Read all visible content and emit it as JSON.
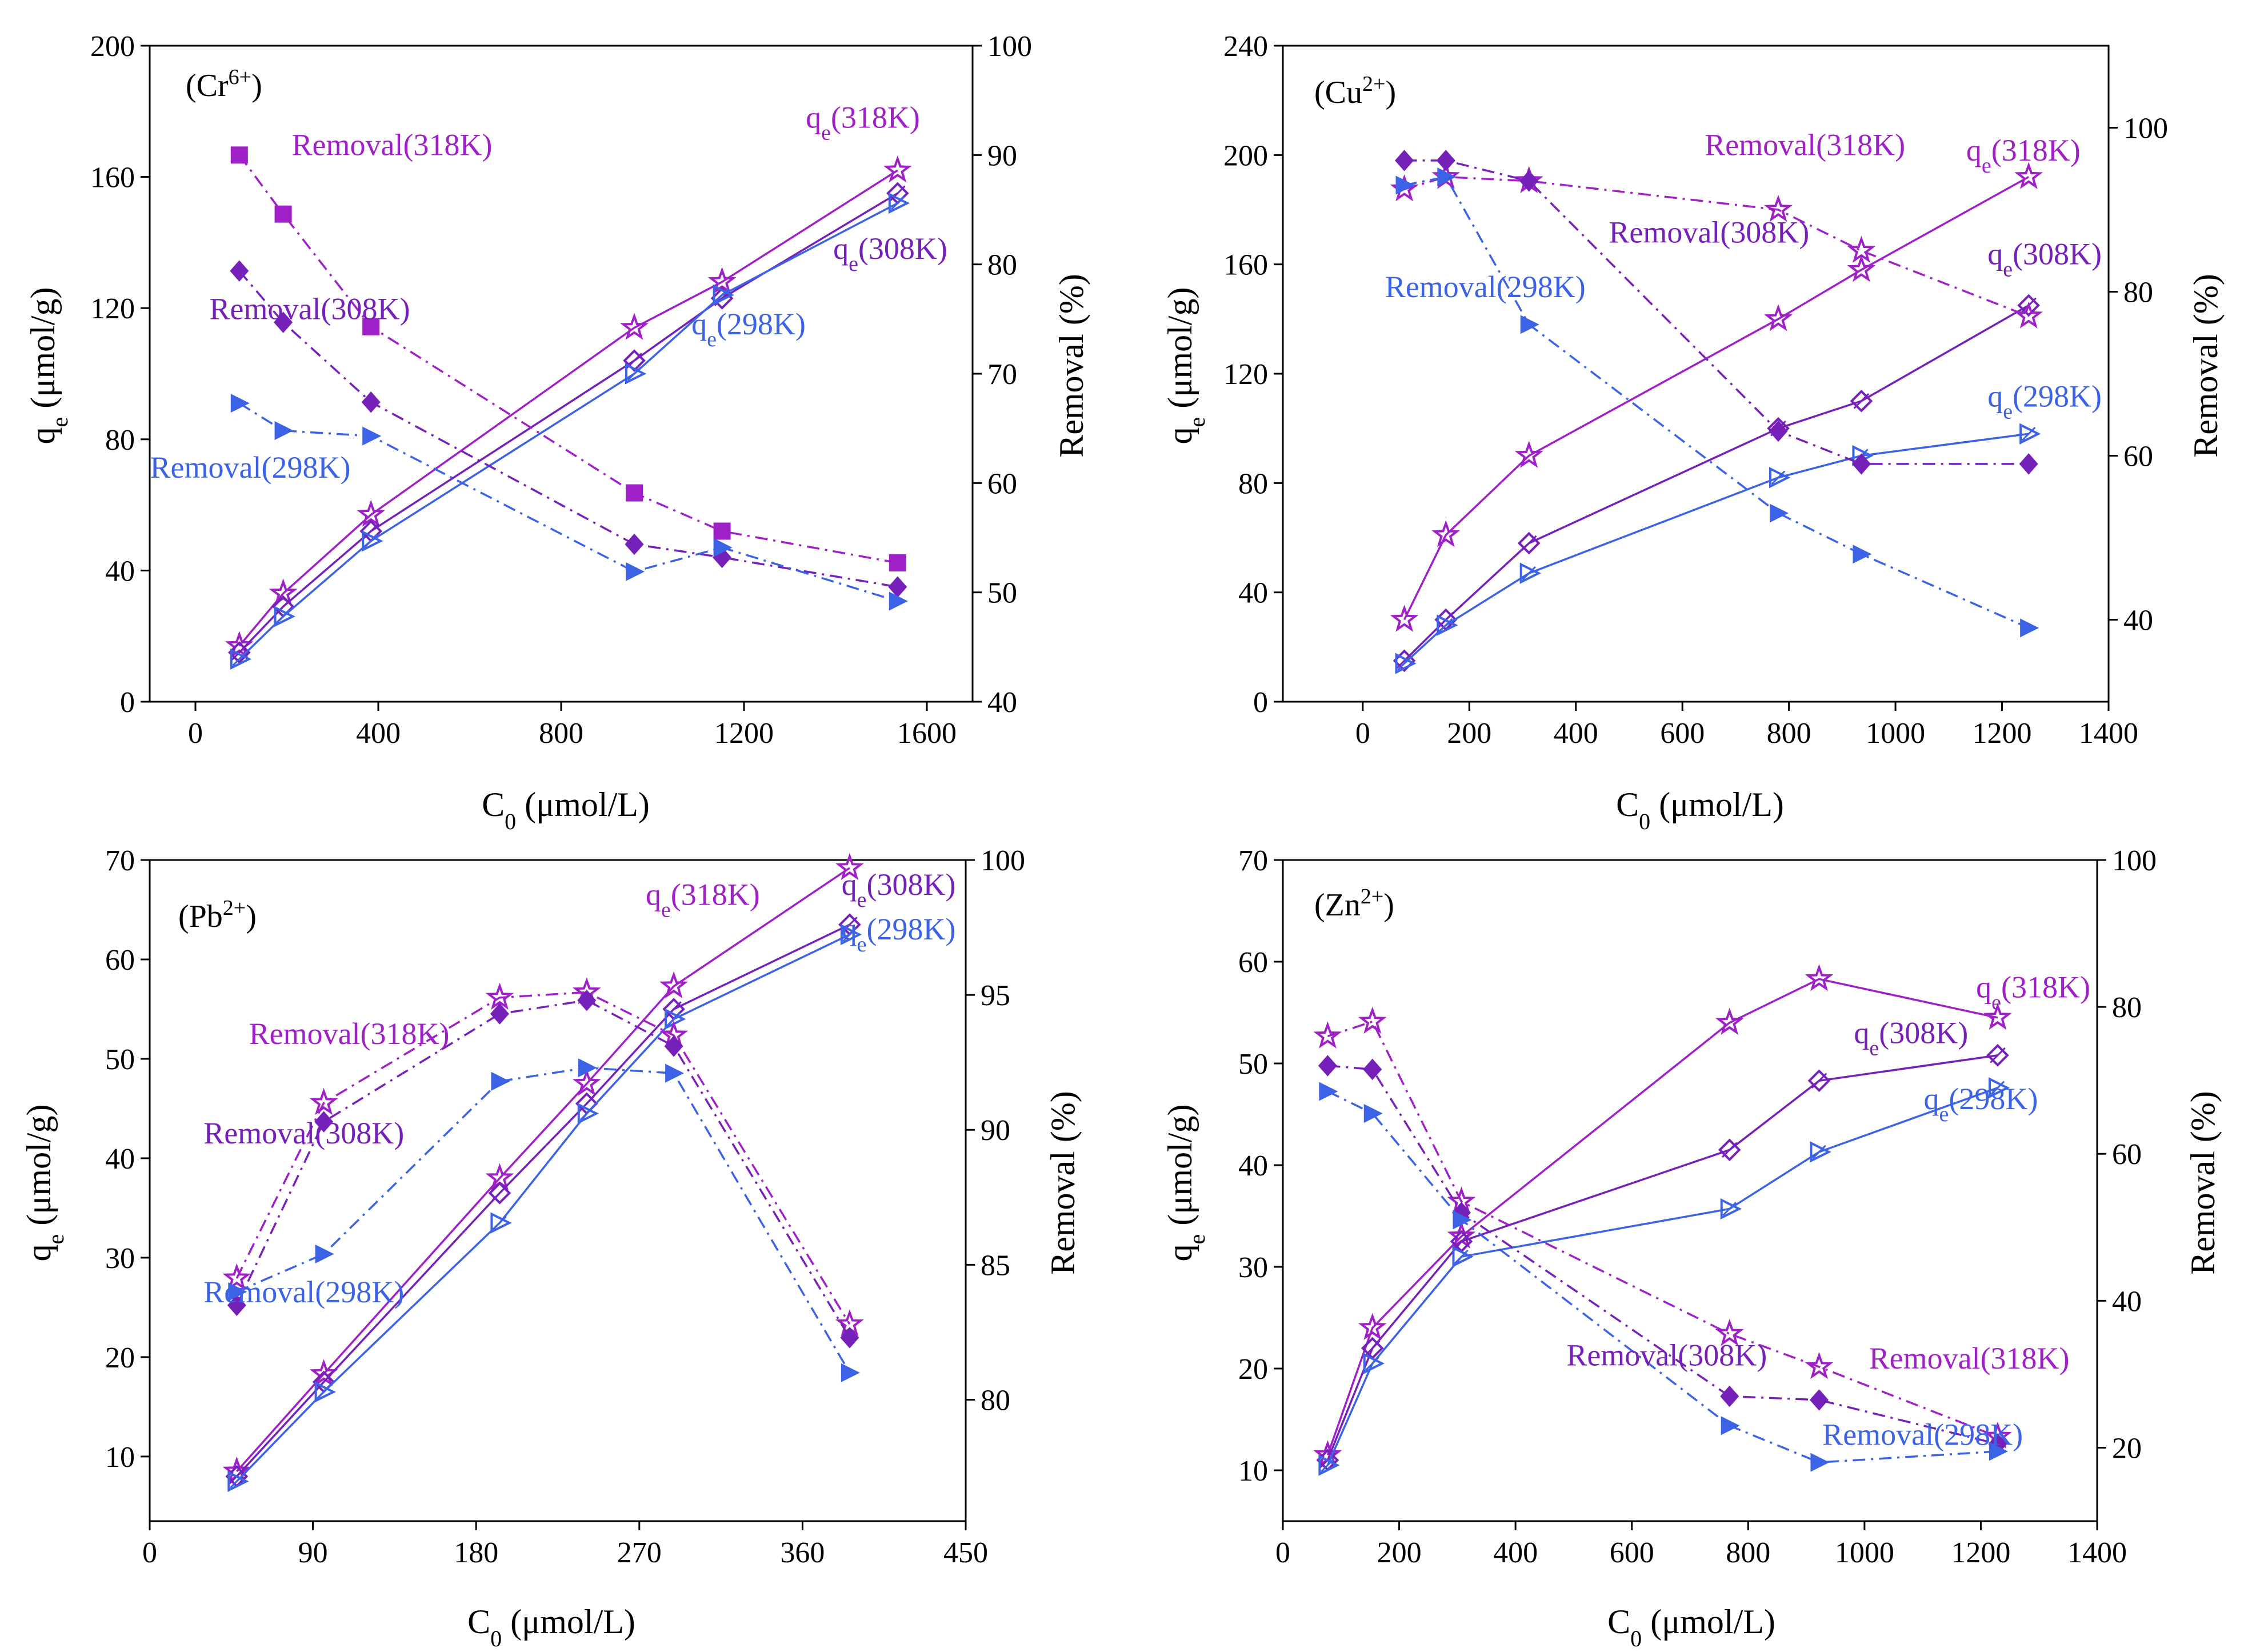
{
  "panels": [
    {
      "id": "cr",
      "label": "(Cr",
      "label_sup": "6+",
      "label_close": ")",
      "xlabel": "C",
      "xlabel_sub": "0",
      "xlabel_unit": " (μmol/L)",
      "ylabel_left": "q",
      "ylabel_left_sub": "e",
      "ylabel_left_unit": " (μmol/g)",
      "ylabel_right": "Removal (%)"
    },
    {
      "id": "cu",
      "label": "(Cu",
      "label_sup": "2+",
      "label_close": ")",
      "xlabel": "C",
      "xlabel_sub": "0",
      "xlabel_unit": " (μmol/L)",
      "ylabel_left": "q",
      "ylabel_left_sub": "e",
      "ylabel_left_unit": " (μmol/g)",
      "ylabel_right": "Removal (%)"
    },
    {
      "id": "pb",
      "label": "(Pb",
      "label_sup": "2+",
      "label_close": ")",
      "xlabel": "C",
      "xlabel_sub": "0",
      "xlabel_unit": " (μmol/L)",
      "ylabel_left": "q",
      "ylabel_left_sub": "e",
      "ylabel_left_unit": " (μmol/g)",
      "ylabel_right": "Removal (%)"
    },
    {
      "id": "zn",
      "label": "(Zn",
      "label_sup": "2+",
      "label_close": ")",
      "xlabel": "C",
      "xlabel_sub": "0",
      "xlabel_unit": " (μmol/L)",
      "ylabel_left": "q",
      "ylabel_left_sub": "e",
      "ylabel_left_unit": " (μmol/g)",
      "ylabel_right": "Removal (%)"
    }
  ],
  "colors": {
    "k318": "#a020c8",
    "k308": "#7520b8",
    "k298": "#3c62e6"
  },
  "chart_data": [
    {
      "type": "line",
      "title": "(Cr6+)",
      "xlabel": "C0 (μmol/L)",
      "ylabel": "qe (μmol/g)",
      "y2label": "Removal (%)",
      "xlim": [
        -100,
        1700
      ],
      "ylim": [
        0,
        200
      ],
      "y2lim": [
        40,
        100
      ],
      "xticks": [
        0,
        400,
        800,
        1200,
        1600
      ],
      "yticks": [
        0,
        40,
        80,
        120,
        160,
        200
      ],
      "y2ticks": [
        40,
        50,
        60,
        70,
        80,
        90,
        100
      ],
      "series": [
        {
          "name": "qe(318K)",
          "axis": "left",
          "temp": "318",
          "kind": "qe",
          "x": [
            96,
            192,
            384,
            960,
            1152,
            1536
          ],
          "values": [
            17,
            33,
            57,
            114,
            128,
            162
          ]
        },
        {
          "name": "qe(308K)",
          "axis": "left",
          "temp": "308",
          "kind": "qe",
          "x": [
            96,
            192,
            384,
            960,
            1152,
            1536
          ],
          "values": [
            15,
            29,
            52,
            104,
            123,
            155
          ]
        },
        {
          "name": "qe(298K)",
          "axis": "left",
          "temp": "298",
          "kind": "qe",
          "x": [
            96,
            192,
            384,
            960,
            1152,
            1536
          ],
          "values": [
            13,
            26,
            49,
            100,
            124,
            152
          ]
        },
        {
          "name": "Removal(318K)",
          "axis": "right",
          "temp": "318",
          "kind": "removal",
          "marker": "square",
          "x": [
            96,
            192,
            384,
            960,
            1152,
            1536
          ],
          "values": [
            90.0,
            84.6,
            74.3,
            59.1,
            55.6,
            52.7
          ]
        },
        {
          "name": "Removal(308K)",
          "axis": "right",
          "temp": "308",
          "kind": "removal",
          "marker": "diamond",
          "x": [
            96,
            192,
            384,
            960,
            1152,
            1536
          ],
          "values": [
            79.4,
            74.7,
            67.4,
            54.4,
            53.2,
            50.5
          ]
        },
        {
          "name": "Removal(298K)",
          "axis": "right",
          "temp": "298",
          "kind": "removal",
          "marker": "triangle",
          "x": [
            96,
            192,
            384,
            960,
            1152,
            1536
          ],
          "values": [
            67.3,
            64.8,
            64.3,
            51.9,
            54.1,
            49.2
          ]
        }
      ],
      "annotations": [
        {
          "text": "qe(318K)",
          "x": 1460,
          "y": 175,
          "axis": "left",
          "temp": "318"
        },
        {
          "text": "qe(308K)",
          "x": 1520,
          "y": 135,
          "axis": "left",
          "temp": "308"
        },
        {
          "text": "qe(298K)",
          "x": 1210,
          "y": 112,
          "axis": "left",
          "temp": "298"
        },
        {
          "text": "Removal(318K)",
          "x": 430,
          "y": 90,
          "axis": "right",
          "temp": "318"
        },
        {
          "text": "Removal(308K)",
          "x": 250,
          "y": 75,
          "axis": "right",
          "temp": "308"
        },
        {
          "text": "Removal(298K)",
          "x": 120,
          "y": 60.5,
          "axis": "right",
          "temp": "298"
        }
      ]
    },
    {
      "type": "line",
      "title": "(Cu2+)",
      "xlabel": "C0 (μmol/L)",
      "ylabel": "qe (μmol/g)",
      "y2label": "Removal (%)",
      "xlim": [
        -150,
        1400
      ],
      "ylim": [
        0,
        240
      ],
      "y2lim": [
        30,
        110
      ],
      "xticks": [
        0,
        200,
        400,
        600,
        800,
        1000,
        1200,
        1400
      ],
      "yticks": [
        0,
        40,
        80,
        120,
        160,
        200,
        240
      ],
      "y2ticks": [
        40,
        60,
        80,
        100
      ],
      "series": [
        {
          "name": "qe(318K)",
          "axis": "left",
          "temp": "318",
          "kind": "qe",
          "x": [
            78,
            156,
            312,
            780,
            936,
            1250
          ],
          "values": [
            30,
            61,
            90,
            140,
            158,
            192
          ]
        },
        {
          "name": "qe(308K)",
          "axis": "left",
          "temp": "308",
          "kind": "qe",
          "x": [
            78,
            156,
            312,
            780,
            936,
            1250
          ],
          "values": [
            15,
            30,
            58,
            100,
            110,
            145
          ]
        },
        {
          "name": "qe(298K)",
          "axis": "left",
          "temp": "298",
          "kind": "qe",
          "x": [
            78,
            156,
            312,
            780,
            936,
            1250
          ],
          "values": [
            14,
            28,
            47,
            82,
            90,
            98
          ]
        },
        {
          "name": "Removal(318K)",
          "axis": "right",
          "temp": "318",
          "kind": "removal",
          "marker": "star",
          "x": [
            78,
            156,
            312,
            780,
            936,
            1250
          ],
          "values": [
            92.5,
            94.0,
            93.5,
            90.0,
            85.0,
            77.0
          ]
        },
        {
          "name": "Removal(308K)",
          "axis": "right",
          "temp": "308",
          "kind": "removal",
          "marker": "diamond",
          "x": [
            78,
            156,
            312,
            780,
            936,
            1250
          ],
          "values": [
            96.0,
            96.0,
            93.5,
            63.0,
            59.0,
            59.0
          ]
        },
        {
          "name": "Removal(298K)",
          "axis": "right",
          "temp": "298",
          "kind": "removal",
          "marker": "triangle",
          "x": [
            78,
            156,
            312,
            780,
            936,
            1250
          ],
          "values": [
            93.0,
            94.0,
            76.0,
            53.0,
            48.0,
            39.0
          ]
        }
      ],
      "annotations": [
        {
          "text": "Removal(318K)",
          "x": 830,
          "y": 200,
          "axis": "left",
          "temp": "318"
        },
        {
          "text": "Removal(308K)",
          "x": 650,
          "y": 168,
          "axis": "left",
          "temp": "308"
        },
        {
          "text": "Removal(298K)",
          "x": 230,
          "y": 148,
          "axis": "left",
          "temp": "298"
        },
        {
          "text": "qe(318K)",
          "x": 1240,
          "y": 198,
          "axis": "left",
          "temp": "318"
        },
        {
          "text": "qe(308K)",
          "x": 1280,
          "y": 160,
          "axis": "left",
          "temp": "308"
        },
        {
          "text": "qe(298K)",
          "x": 1280,
          "y": 108,
          "axis": "left",
          "temp": "298"
        }
      ]
    },
    {
      "type": "line",
      "title": "(Pb2+)",
      "xlabel": "C0 (μmol/L)",
      "ylabel": "qe (μmol/g)",
      "y2label": "Removal (%)",
      "xlim": [
        0,
        450
      ],
      "ylim": [
        3.5,
        70
      ],
      "y2lim": [
        75.5,
        100
      ],
      "xticks": [
        0,
        90,
        180,
        270,
        360,
        450
      ],
      "yticks": [
        10,
        20,
        30,
        40,
        50,
        60,
        70
      ],
      "y2ticks": [
        80,
        85,
        90,
        95,
        100
      ],
      "series": [
        {
          "name": "qe(318K)",
          "axis": "left",
          "temp": "318",
          "kind": "qe",
          "x": [
            48,
            96,
            193,
            241,
            289,
            386
          ],
          "values": [
            8.5,
            18.3,
            38,
            47.5,
            57.3,
            69.2
          ]
        },
        {
          "name": "qe(308K)",
          "axis": "left",
          "temp": "308",
          "kind": "qe",
          "x": [
            48,
            96,
            193,
            241,
            289,
            386
          ],
          "values": [
            8.0,
            17.5,
            36.5,
            45.5,
            55.0,
            63.5
          ]
        },
        {
          "name": "qe(298K)",
          "axis": "left",
          "temp": "298",
          "kind": "qe",
          "x": [
            48,
            96,
            193,
            241,
            289,
            386
          ],
          "values": [
            7.5,
            16.5,
            33.5,
            44.5,
            54.0,
            62.5
          ]
        },
        {
          "name": "Removal(318K)",
          "axis": "right",
          "temp": "318",
          "kind": "removal",
          "marker": "star",
          "x": [
            48,
            96,
            193,
            241,
            289,
            386
          ],
          "values": [
            84.5,
            91.0,
            94.9,
            95.1,
            93.5,
            82.8
          ]
        },
        {
          "name": "Removal(308K)",
          "axis": "right",
          "temp": "308",
          "kind": "removal",
          "marker": "diamond",
          "x": [
            48,
            96,
            193,
            241,
            289,
            386
          ],
          "values": [
            83.5,
            90.3,
            94.3,
            94.8,
            93.1,
            82.3
          ]
        },
        {
          "name": "Removal(298K)",
          "axis": "right",
          "temp": "298",
          "kind": "removal",
          "marker": "triangle",
          "x": [
            48,
            96,
            193,
            241,
            289,
            386
          ],
          "values": [
            84.0,
            85.4,
            91.8,
            92.3,
            92.1,
            81.0
          ]
        }
      ],
      "annotations": [
        {
          "text": "qe(318K)",
          "x": 305,
          "y": 65.5,
          "axis": "left",
          "temp": "318"
        },
        {
          "text": "qe(308K)",
          "x": 413,
          "y": 66.5,
          "axis": "left",
          "temp": "308"
        },
        {
          "text": "qe(298K)",
          "x": 413,
          "y": 62.0,
          "axis": "left",
          "temp": "298"
        },
        {
          "text": "Removal(318K)",
          "x": 110,
          "y": 51.5,
          "axis": "left",
          "temp": "318"
        },
        {
          "text": "Removal(308K)",
          "x": 85,
          "y": 41.5,
          "axis": "left",
          "temp": "308"
        },
        {
          "text": "Removal(298K)",
          "x": 85,
          "y": 25.5,
          "axis": "left",
          "temp": "298"
        }
      ]
    },
    {
      "type": "line",
      "title": "(Zn2+)",
      "xlabel": "C0 (μmol/L)",
      "ylabel": "qe (μmol/g)",
      "y2label": "Removal (%)",
      "xlim": [
        0,
        1400
      ],
      "ylim": [
        5,
        70
      ],
      "y2lim": [
        10,
        100
      ],
      "xticks": [
        0,
        200,
        400,
        600,
        800,
        1000,
        1200,
        1400
      ],
      "yticks": [
        10,
        20,
        30,
        40,
        50,
        60,
        70
      ],
      "y2ticks": [
        20,
        40,
        60,
        80,
        100
      ],
      "series": [
        {
          "name": "qe(318K)",
          "axis": "left",
          "temp": "318",
          "kind": "qe",
          "x": [
            77,
            154,
            307,
            768,
            922,
            1229
          ],
          "values": [
            11.5,
            24.0,
            33.0,
            54.0,
            58.3,
            54.5
          ]
        },
        {
          "name": "qe(308K)",
          "axis": "left",
          "temp": "308",
          "kind": "qe",
          "x": [
            77,
            154,
            307,
            768,
            922,
            1229
          ],
          "values": [
            11.0,
            22.0,
            32.5,
            41.5,
            48.3,
            50.8
          ]
        },
        {
          "name": "qe(298K)",
          "axis": "left",
          "temp": "298",
          "kind": "qe",
          "x": [
            77,
            154,
            307,
            768,
            922,
            1229
          ],
          "values": [
            10.5,
            20.5,
            31.0,
            35.7,
            41.3,
            47.6
          ]
        },
        {
          "name": "Removal(318K)",
          "axis": "right",
          "temp": "318",
          "kind": "removal",
          "marker": "star",
          "x": [
            77,
            154,
            307,
            768,
            922,
            1229
          ],
          "values": [
            76.0,
            78.0,
            53.5,
            35.5,
            31.0,
            21.5
          ]
        },
        {
          "name": "Removal(308K)",
          "axis": "right",
          "temp": "308",
          "kind": "removal",
          "marker": "diamond",
          "x": [
            77,
            154,
            307,
            768,
            922,
            1229
          ],
          "values": [
            72.0,
            71.5,
            52.0,
            27.0,
            26.5,
            20.5
          ]
        },
        {
          "name": "Removal(298K)",
          "axis": "right",
          "temp": "298",
          "kind": "removal",
          "marker": "triangle",
          "x": [
            77,
            154,
            307,
            768,
            922,
            1229
          ],
          "values": [
            68.5,
            65.5,
            51.0,
            23.0,
            18.0,
            19.5
          ]
        }
      ],
      "annotations": [
        {
          "text": "qe(318K)",
          "x": 1290,
          "y": 56.5,
          "axis": "left",
          "temp": "318"
        },
        {
          "text": "qe(308K)",
          "x": 1080,
          "y": 52.0,
          "axis": "left",
          "temp": "308"
        },
        {
          "text": "qe(298K)",
          "x": 1200,
          "y": 45.5,
          "axis": "left",
          "temp": "298"
        },
        {
          "text": "Removal(318K)",
          "x": 1180,
          "y": 20.0,
          "axis": "left",
          "temp": "318"
        },
        {
          "text": "Removal(308K)",
          "x": 660,
          "y": 20.3,
          "axis": "left",
          "temp": "308"
        },
        {
          "text": "Removal(298K)",
          "x": 1100,
          "y": 12.5,
          "axis": "left",
          "temp": "298"
        }
      ]
    }
  ]
}
